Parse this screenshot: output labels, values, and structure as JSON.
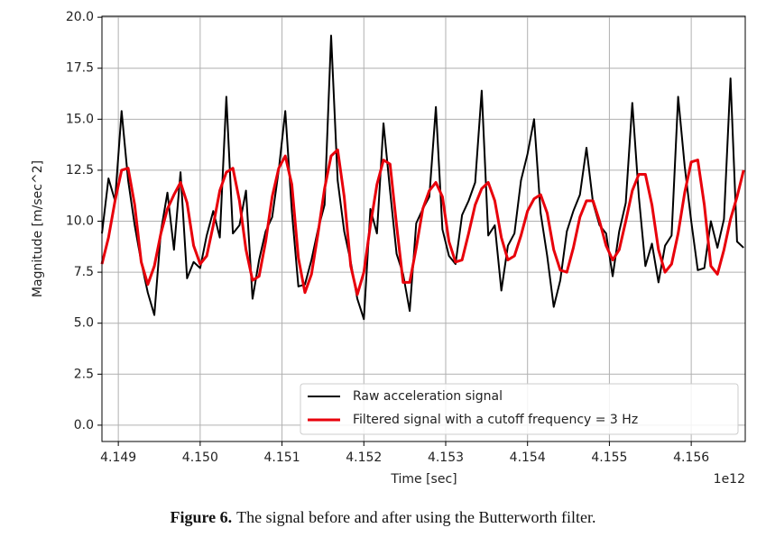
{
  "chart_data": {
    "type": "line",
    "x_label": "Time [sec]",
    "y_label": "Magnitude [m/sec^2]",
    "x_offset_label": "1e12",
    "x": [
      4.1488,
      4.14888,
      4.14896,
      4.14904,
      4.14912,
      4.1492,
      4.14928,
      4.14936,
      4.14944,
      4.14952,
      4.1496,
      4.14968,
      4.14976,
      4.14984,
      4.14992,
      4.15,
      4.15008,
      4.15016,
      4.15024,
      4.15032,
      4.1504,
      4.15048,
      4.15056,
      4.15064,
      4.15072,
      4.1508,
      4.15088,
      4.15096,
      4.15104,
      4.15112,
      4.1512,
      4.15128,
      4.15136,
      4.15144,
      4.15152,
      4.1516,
      4.15168,
      4.15176,
      4.15184,
      4.15192,
      4.152,
      4.15208,
      4.15216,
      4.15224,
      4.15232,
      4.1524,
      4.15248,
      4.15256,
      4.15264,
      4.15272,
      4.1528,
      4.15288,
      4.15296,
      4.15304,
      4.15312,
      4.1532,
      4.15328,
      4.15336,
      4.15344,
      4.15352,
      4.1536,
      4.15368,
      4.15376,
      4.15384,
      4.15392,
      4.154,
      4.15408,
      4.15416,
      4.15424,
      4.15432,
      4.1544,
      4.15448,
      4.15456,
      4.15464,
      4.15472,
      4.1548,
      4.15488,
      4.15496,
      4.15504,
      4.15512,
      4.1552,
      4.15528,
      4.15536,
      4.15544,
      4.15552,
      4.1556,
      4.15568,
      4.15576,
      4.15584,
      4.15592,
      4.156,
      4.15608,
      4.15616,
      4.15624,
      4.15632,
      4.1564,
      4.15648,
      4.15656,
      4.15664
    ],
    "series": [
      {
        "name": "Raw acceleration signal",
        "color": "#000000",
        "width": 2,
        "values": [
          9.4,
          12.1,
          11.0,
          15.4,
          12.0,
          9.8,
          8.0,
          6.5,
          5.4,
          9.5,
          11.4,
          8.6,
          12.4,
          7.2,
          8.0,
          7.7,
          9.3,
          10.5,
          9.2,
          16.1,
          9.4,
          9.8,
          11.5,
          6.2,
          8.1,
          9.5,
          10.2,
          12.5,
          15.4,
          10.5,
          6.8,
          6.9,
          8.1,
          9.6,
          10.8,
          19.1,
          12.0,
          9.5,
          8.0,
          6.2,
          5.2,
          10.6,
          9.4,
          14.8,
          11.5,
          8.4,
          7.4,
          5.6,
          9.9,
          10.6,
          11.2,
          15.6,
          9.6,
          8.3,
          7.9,
          10.3,
          11.0,
          11.9,
          16.4,
          9.3,
          9.8,
          6.6,
          8.8,
          9.4,
          12.0,
          13.3,
          15.0,
          10.4,
          8.3,
          5.8,
          7.1,
          9.5,
          10.5,
          11.3,
          13.6,
          10.9,
          9.8,
          9.4,
          7.3,
          9.5,
          10.9,
          15.8,
          11.2,
          7.8,
          8.9,
          7.0,
          8.8,
          9.3,
          16.1,
          12.7,
          10.0,
          7.6,
          7.7,
          10.0,
          8.7,
          10.1,
          17.0,
          9.0,
          8.7
        ]
      },
      {
        "name": "Filtered signal with a cutoff frequency = 3 Hz",
        "color": "#e8000b",
        "width": 3,
        "values": [
          7.9,
          9.2,
          11.0,
          12.5,
          12.6,
          10.8,
          8.0,
          6.9,
          7.8,
          9.4,
          10.6,
          11.3,
          11.9,
          10.9,
          8.8,
          7.9,
          8.3,
          9.8,
          11.5,
          12.4,
          12.6,
          11.0,
          8.6,
          7.1,
          7.3,
          9.0,
          11.2,
          12.6,
          13.2,
          11.8,
          8.2,
          6.5,
          7.4,
          9.4,
          11.6,
          13.2,
          13.5,
          11.2,
          7.8,
          6.4,
          7.5,
          9.8,
          11.8,
          13.0,
          12.8,
          9.8,
          7.0,
          7.0,
          8.7,
          10.6,
          11.5,
          11.9,
          11.2,
          9.0,
          8.0,
          8.1,
          9.4,
          10.8,
          11.6,
          11.9,
          11.0,
          9.2,
          8.1,
          8.3,
          9.3,
          10.5,
          11.1,
          11.3,
          10.4,
          8.6,
          7.6,
          7.5,
          8.7,
          10.2,
          11.0,
          11.0,
          10.0,
          8.8,
          8.1,
          8.6,
          10.0,
          11.5,
          12.3,
          12.3,
          10.8,
          8.6,
          7.5,
          7.9,
          9.4,
          11.4,
          12.9,
          13.0,
          10.8,
          7.8,
          7.4,
          8.6,
          10.1,
          11.2,
          12.5
        ]
      }
    ],
    "xlim": [
      4.1488,
      4.15666
    ],
    "xticks": [
      4.149,
      {
        "value": 4.15,
        "label": "4.150"
      },
      4.151,
      4.152,
      4.153,
      4.154,
      4.155,
      4.156
    ],
    "ylim": [
      -0.8,
      20.05
    ],
    "yticks": [
      {
        "value": 0,
        "label": "0.0"
      },
      2.5,
      {
        "value": 5,
        "label": "5.0"
      },
      7.5,
      {
        "value": 10,
        "label": "10.0"
      },
      12.5,
      {
        "value": 15,
        "label": "15.0"
      },
      17.5,
      {
        "value": 20,
        "label": "20.0"
      }
    ],
    "grid": true,
    "legend": "lower right"
  },
  "caption": {
    "label": "Figure 6.",
    "text": "The signal before and after using the Butterworth filter."
  }
}
